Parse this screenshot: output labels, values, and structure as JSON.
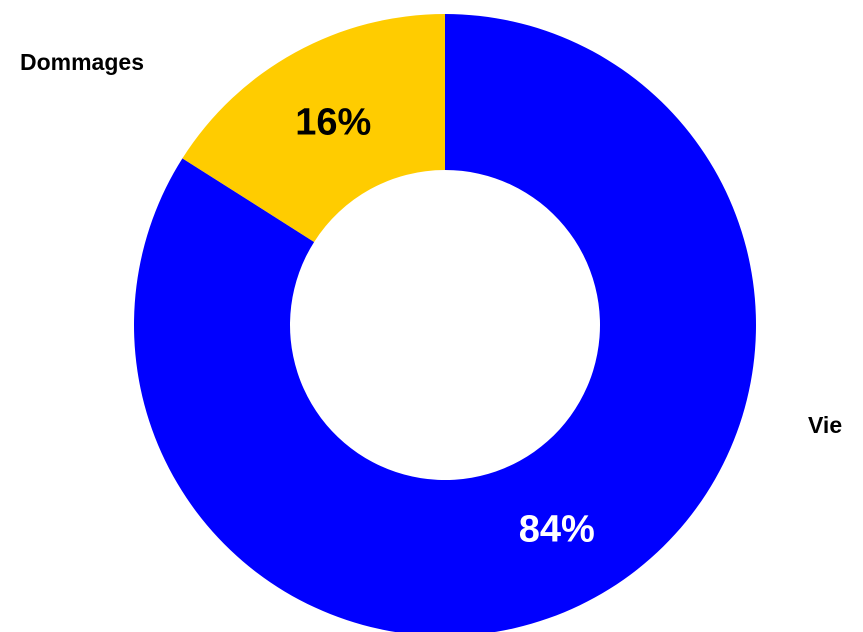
{
  "chart_data": {
    "type": "pie",
    "donut": true,
    "categories": [
      "Vie",
      "Dommages"
    ],
    "values": [
      84,
      16
    ],
    "value_labels": [
      "84%",
      "16%"
    ],
    "colors": [
      "#0000ff",
      "#ffcc00"
    ],
    "label_colors": [
      "#ffffff",
      "#000000"
    ],
    "legend": "none"
  }
}
